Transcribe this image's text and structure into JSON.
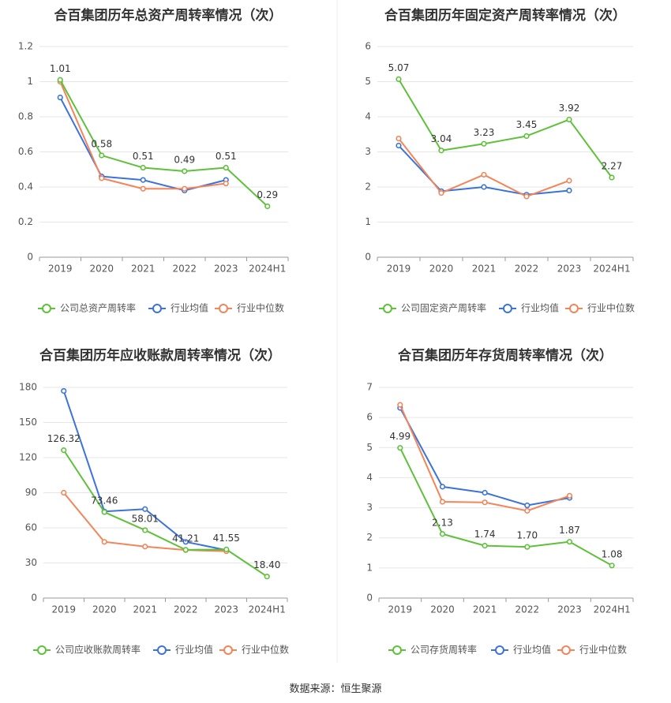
{
  "source_text": "数据来源：恒生聚源",
  "colors": {
    "company": "#5ec13a",
    "avg": "#3c73d8",
    "median": "#f2855a",
    "grid": "#e6e6e6",
    "axis": "#999999",
    "text": "#555555",
    "title": "#333333"
  },
  "chart_data": [
    {
      "type": "line",
      "title": "合百集团历年总资产周转率情况（次）",
      "categories": [
        "2019",
        "2020",
        "2021",
        "2022",
        "2023",
        "2024H1"
      ],
      "ylim": [
        0,
        1.2
      ],
      "yticks": [
        "0",
        "0.2",
        "0.4",
        "0.6",
        "0.8",
        "1",
        "1.2"
      ],
      "series": [
        {
          "name": "公司总资产周转率",
          "role": "company",
          "values": [
            1.01,
            0.58,
            0.51,
            0.49,
            0.51,
            0.29
          ],
          "labels": [
            "1.01",
            "0.58",
            "0.51",
            "0.49",
            "0.51",
            "0.29"
          ]
        },
        {
          "name": "行业均值",
          "role": "avg",
          "values": [
            0.91,
            0.46,
            0.44,
            0.38,
            0.44,
            null
          ]
        },
        {
          "name": "行业中位数",
          "role": "median",
          "values": [
            1.0,
            0.45,
            0.39,
            0.39,
            0.42,
            null
          ]
        }
      ]
    },
    {
      "type": "line",
      "title": "合百集团历年固定资产周转率情况（次）",
      "categories": [
        "2019",
        "2020",
        "2021",
        "2022",
        "2023",
        "2024H1"
      ],
      "ylim": [
        0,
        6
      ],
      "yticks": [
        "0",
        "1",
        "2",
        "3",
        "4",
        "5",
        "6"
      ],
      "series": [
        {
          "name": "公司固定资产周转率",
          "role": "company",
          "values": [
            5.07,
            3.04,
            3.23,
            3.45,
            3.92,
            2.27
          ],
          "labels": [
            "5.07",
            "3.04",
            "3.23",
            "3.45",
            "3.92",
            "2.27"
          ]
        },
        {
          "name": "行业均值",
          "role": "avg",
          "values": [
            3.18,
            1.88,
            2.0,
            1.78,
            1.9,
            null
          ]
        },
        {
          "name": "行业中位数",
          "role": "median",
          "values": [
            3.38,
            1.83,
            2.35,
            1.73,
            2.18,
            null
          ]
        }
      ]
    },
    {
      "type": "line",
      "title": "合百集团历年应收账款周转率情况（次）",
      "categories": [
        "2019",
        "2020",
        "2021",
        "2022",
        "2023",
        "2024H1"
      ],
      "ylim": [
        0,
        180
      ],
      "yticks": [
        "0",
        "30",
        "60",
        "90",
        "120",
        "150",
        "180"
      ],
      "series": [
        {
          "name": "公司应收账款周转率",
          "role": "company",
          "values": [
            126.32,
            73.46,
            58.01,
            41.21,
            41.55,
            18.4
          ],
          "labels": [
            "126.32",
            "73.46",
            "58.01",
            "41.21",
            "41.55",
            "18.40"
          ]
        },
        {
          "name": "行业均值",
          "role": "avg",
          "values": [
            177,
            74,
            76,
            48,
            41,
            null
          ]
        },
        {
          "name": "行业中位数",
          "role": "median",
          "values": [
            90,
            48,
            44,
            41,
            40,
            null
          ]
        }
      ]
    },
    {
      "type": "line",
      "title": "合百集团历年存货周转率情况（次）",
      "categories": [
        "2019",
        "2020",
        "2021",
        "2022",
        "2023",
        "2024H1"
      ],
      "ylim": [
        0,
        7
      ],
      "yticks": [
        "0",
        "1",
        "2",
        "3",
        "4",
        "5",
        "6",
        "7"
      ],
      "series": [
        {
          "name": "公司存货周转率",
          "role": "company",
          "values": [
            4.99,
            2.13,
            1.74,
            1.7,
            1.87,
            1.08
          ],
          "labels": [
            "4.99",
            "2.13",
            "1.74",
            "1.70",
            "1.87",
            "1.08"
          ]
        },
        {
          "name": "行业均值",
          "role": "avg",
          "values": [
            6.32,
            3.7,
            3.5,
            3.08,
            3.33,
            null
          ]
        },
        {
          "name": "行业中位数",
          "role": "median",
          "values": [
            6.42,
            3.2,
            3.18,
            2.9,
            3.4,
            null
          ]
        }
      ]
    }
  ]
}
